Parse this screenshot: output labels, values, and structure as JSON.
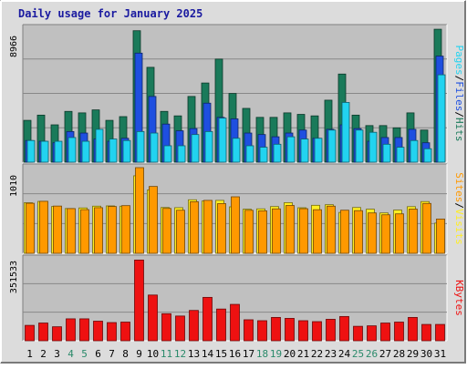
{
  "chart_data": {
    "type": "bar",
    "title": "Daily usage for January 2025",
    "categories": [
      "1",
      "2",
      "3",
      "4",
      "5",
      "6",
      "7",
      "8",
      "9",
      "10",
      "11",
      "12",
      "13",
      "14",
      "15",
      "16",
      "17",
      "18",
      "19",
      "20",
      "21",
      "22",
      "23",
      "24",
      "25",
      "26",
      "27",
      "28",
      "29",
      "30",
      "31"
    ],
    "weekend_categories": [
      "4",
      "5",
      "11",
      "12",
      "18",
      "19",
      "25",
      "26"
    ],
    "panels": [
      {
        "id": "hits-files-pages",
        "ymax": 8966,
        "ymax_label": "8966",
        "legend": [
          "Pages",
          "/",
          "Files",
          "/",
          "Hits"
        ],
        "series": [
          {
            "name": "Hits",
            "color": "#1a7a5a",
            "values": [
              2800,
              3150,
              2500,
              3400,
              3300,
              3500,
              2800,
              3050,
              8800,
              6350,
              3400,
              3100,
              4400,
              5300,
              6900,
              4600,
              3600,
              3000,
              3000,
              3300,
              3200,
              3100,
              4150,
              5900,
              3150,
              2450,
              2450,
              2300,
              3300,
              2150,
              8900
            ]
          },
          {
            "name": "Files",
            "color": "#1e4fe0",
            "values": [
              1450,
              1400,
              1300,
              2050,
              1950,
              1550,
              1400,
              1600,
              7300,
              4400,
              2550,
              2100,
              2250,
              3950,
              3000,
              2900,
              1950,
              1850,
              1700,
              1950,
              2150,
              1600,
              2200,
              2500,
              2250,
              1400,
              1650,
              1650,
              2200,
              1300,
              7100
            ]
          },
          {
            "name": "Pages",
            "color": "#22d3f0",
            "values": [
              1450,
              1400,
              1400,
              1650,
              1400,
              2200,
              1550,
              1450,
              2050,
              1950,
              1100,
              1100,
              1850,
              2050,
              2950,
              1600,
              1100,
              1000,
              1200,
              1700,
              1550,
              1600,
              2150,
              4000,
              2150,
              2000,
              1200,
              1000,
              1450,
              900,
              5850
            ]
          }
        ]
      },
      {
        "id": "visits-sites",
        "ymax": 1010,
        "ymax_label": "1010",
        "legend": [
          "Sites",
          "/",
          "Visits"
        ],
        "series": [
          {
            "name": "Visits",
            "color": "#ffee22",
            "values": [
              596,
              612,
              552,
              528,
              535,
              556,
              559,
              556,
              914,
              747,
              540,
              538,
              631,
              617,
              624,
              548,
              520,
              524,
              551,
              597,
              537,
              566,
              573,
              482,
              540,
              520,
              476,
              510,
              550,
              610,
              356
            ]
          },
          {
            "name": "Sites",
            "color": "#ff9900",
            "values": [
              590,
              613,
              557,
              527,
              515,
              538,
              552,
              562,
              1010,
              788,
              529,
              508,
              608,
              624,
              586,
              666,
              507,
              501,
              524,
              564,
              526,
              514,
              556,
              508,
              503,
              476,
              454,
              465,
              521,
              588,
              404
            ]
          }
        ]
      },
      {
        "id": "kbytes",
        "ymax": 351533,
        "ymax_label": "351533",
        "legend": [
          "KBytes"
        ],
        "series": [
          {
            "name": "KBytes",
            "color": "#ee1111",
            "values": [
              66000,
              76000,
              60000,
              94000,
              94000,
              84000,
              78000,
              80000,
              346000,
              196000,
              116000,
              106000,
              130000,
              186000,
              136000,
              156000,
              90000,
              86000,
              100000,
              96000,
              86000,
              82000,
              92000,
              104000,
              62000,
              64000,
              76000,
              80000,
              100000,
              70000,
              70000
            ]
          }
        ]
      }
    ],
    "colors": {
      "title": "#1a1aa0",
      "weekday_label": "#000000",
      "weekend_label": "#2a8a6a",
      "plot_bg": "#c0c0c0",
      "gridline": "#888888",
      "frame_bg": "#dcdcdc"
    }
  }
}
